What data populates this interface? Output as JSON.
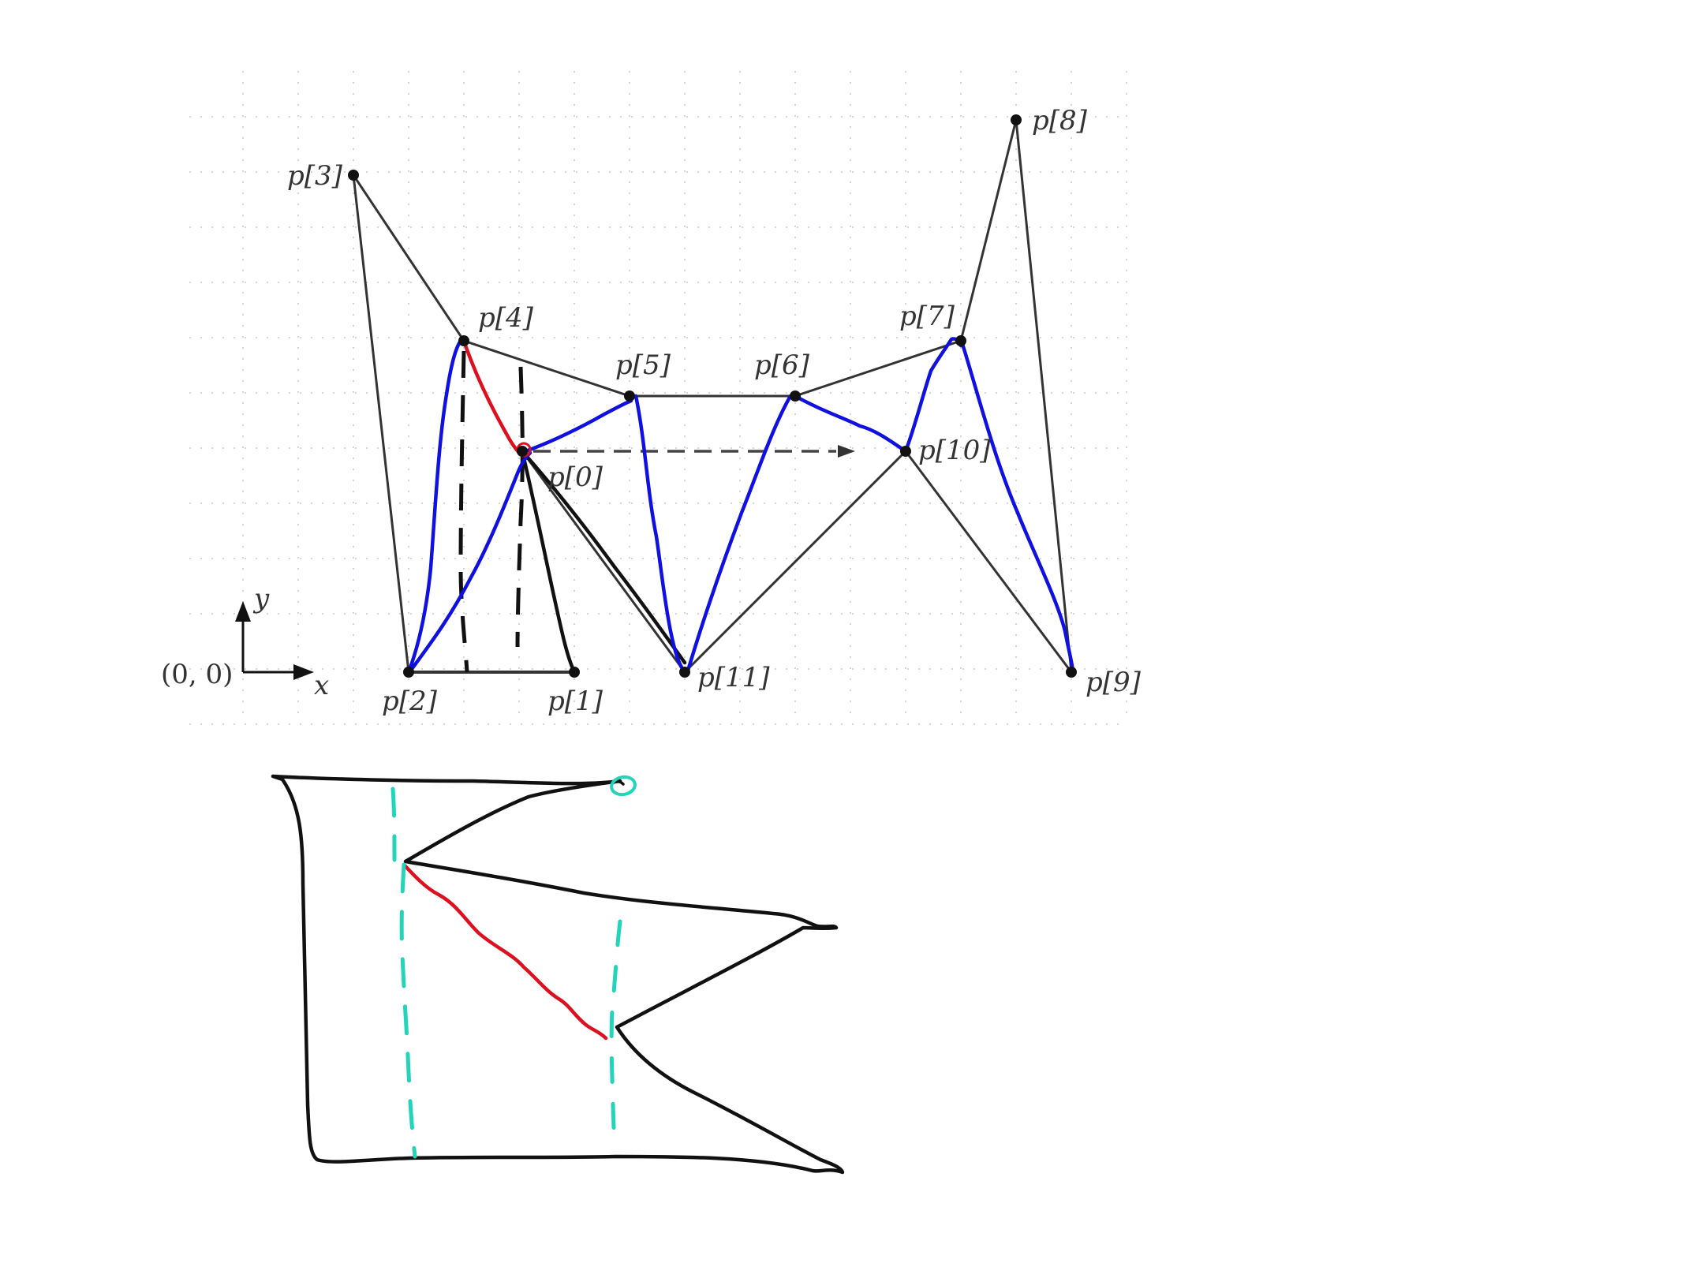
{
  "points": [
    {
      "id": "p0",
      "label": "p[0]"
    },
    {
      "id": "p1",
      "label": "p[1]"
    },
    {
      "id": "p2",
      "label": "p[2]"
    },
    {
      "id": "p3",
      "label": "p[3]"
    },
    {
      "id": "p4",
      "label": "p[4]"
    },
    {
      "id": "p5",
      "label": "p[5]"
    },
    {
      "id": "p6",
      "label": "p[6]"
    },
    {
      "id": "p7",
      "label": "p[7]"
    },
    {
      "id": "p8",
      "label": "p[8]"
    },
    {
      "id": "p9",
      "label": "p[9]"
    },
    {
      "id": "p10",
      "label": "p[10]"
    },
    {
      "id": "p11",
      "label": "p[11]"
    }
  ],
  "axes": {
    "origin_label": "(0, 0)",
    "x_label": "x",
    "y_label": "y"
  },
  "colors": {
    "polygon": "#333333",
    "blue_path": "#1010e0",
    "red_edge": "#dd1020",
    "sketch_dash": "#22d4b8",
    "grid": "#d6d6d6"
  }
}
